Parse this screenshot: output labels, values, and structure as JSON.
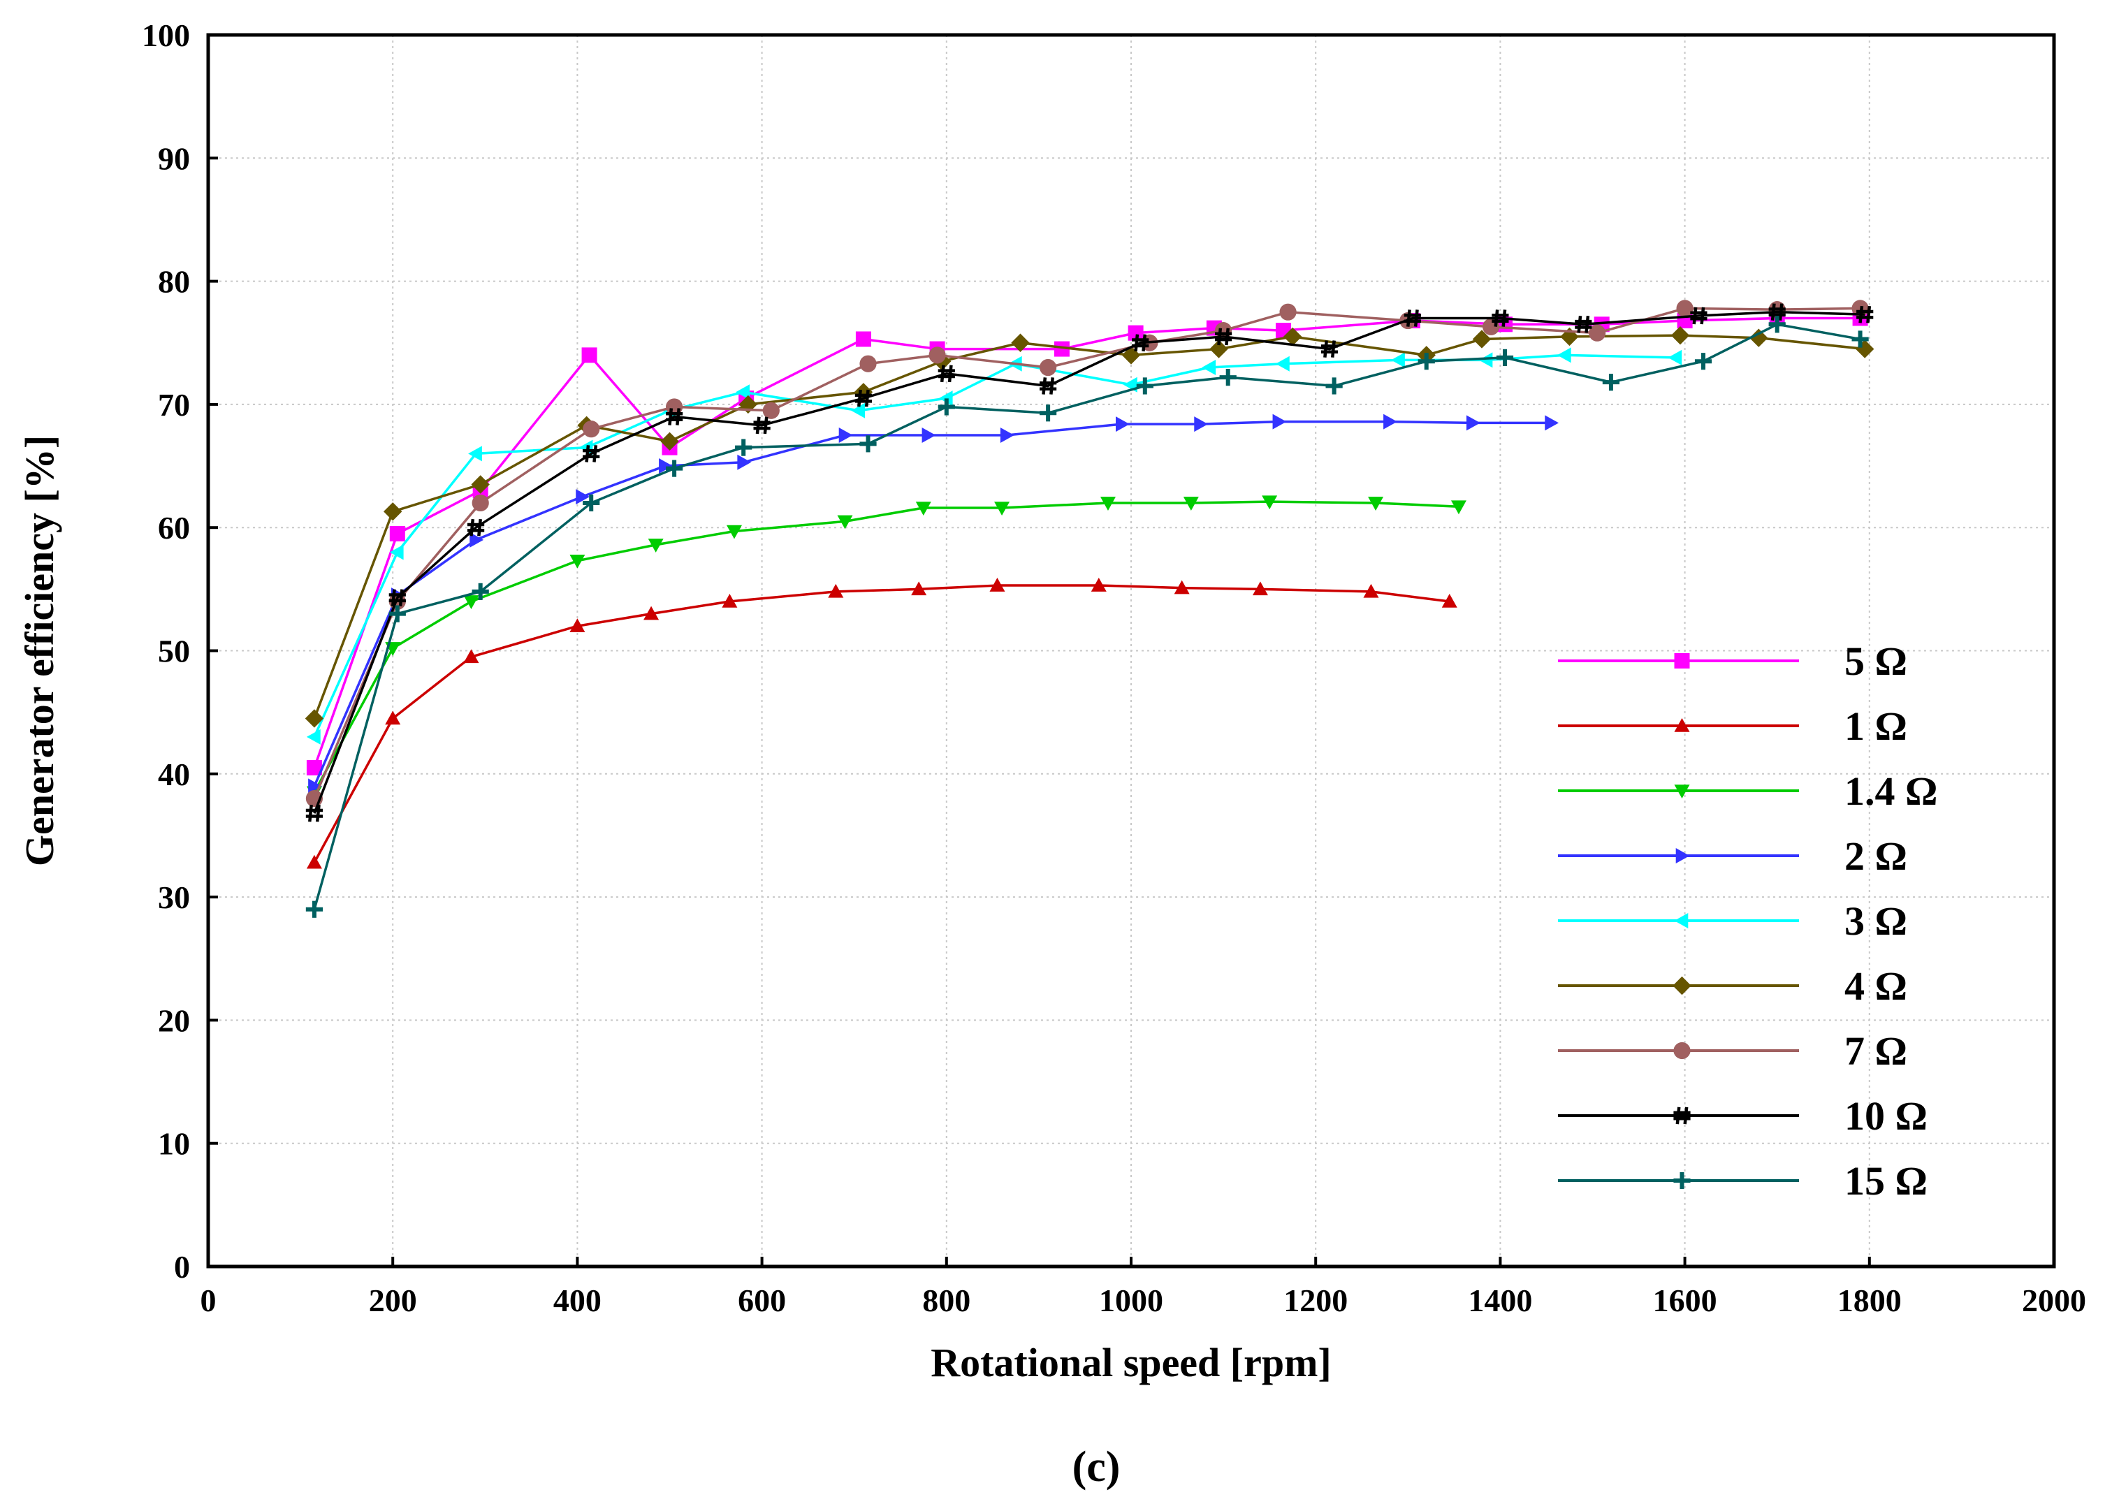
{
  "caption": "(c)",
  "chart_data": {
    "type": "line",
    "title": "",
    "xlabel": "Rotational speed [rpm]",
    "ylabel": "Generator efficiency  [%]",
    "xlim": [
      0,
      2000
    ],
    "ylim": [
      0,
      100
    ],
    "xticks": [
      0,
      200,
      400,
      600,
      800,
      1000,
      1200,
      1400,
      1600,
      1800,
      2000
    ],
    "yticks": [
      0,
      10,
      20,
      30,
      40,
      50,
      60,
      70,
      80,
      90,
      100
    ],
    "xtick_labels": [
      "0",
      "200",
      "400",
      "600",
      "800",
      "1000",
      "1200",
      "1400",
      "1600",
      "1800",
      "2000"
    ],
    "ytick_labels": [
      "0",
      "10",
      "20",
      "30",
      "40",
      "50",
      "60",
      "70",
      "80",
      "90",
      "100"
    ],
    "grid": true,
    "legend_position": "right",
    "series": [
      {
        "name": "5 Ω",
        "color": "#ff00ff",
        "marker": "square",
        "x": [
          115,
          205,
          295,
          413,
          500,
          583,
          710,
          790,
          925,
          1005,
          1090,
          1165,
          1305,
          1405,
          1510,
          1600,
          1700,
          1790
        ],
        "y": [
          40.5,
          59.5,
          63,
          74,
          66.5,
          70.5,
          75.3,
          74.5,
          74.5,
          75.8,
          76.2,
          76,
          76.8,
          76.5,
          76.5,
          76.8,
          77,
          77
        ]
      },
      {
        "name": "1 Ω",
        "color": "#cc0000",
        "marker": "triangle-up",
        "x": [
          115,
          200,
          285,
          400,
          480,
          565,
          680,
          770,
          855,
          965,
          1055,
          1140,
          1260,
          1345
        ],
        "y": [
          32.8,
          44.5,
          49.5,
          52,
          53,
          54,
          54.8,
          55,
          55.3,
          55.3,
          55.1,
          55,
          54.8,
          54
        ]
      },
      {
        "name": "1.4 Ω",
        "color": "#00cc00",
        "marker": "triangle-down",
        "x": [
          115,
          200,
          285,
          400,
          485,
          570,
          690,
          775,
          860,
          975,
          1065,
          1150,
          1265,
          1355
        ],
        "y": [
          38.5,
          50.2,
          54,
          57.3,
          58.6,
          59.7,
          60.5,
          61.6,
          61.6,
          62,
          62,
          62.1,
          62,
          61.7
        ]
      },
      {
        "name": "2 Ω",
        "color": "#3333ff",
        "marker": "triangle-right",
        "x": [
          115,
          205,
          290,
          405,
          495,
          580,
          690,
          780,
          865,
          990,
          1075,
          1160,
          1280,
          1370,
          1455
        ],
        "y": [
          39,
          54.5,
          59,
          62.5,
          65,
          65.3,
          67.5,
          67.5,
          67.5,
          68.4,
          68.4,
          68.6,
          68.6,
          68.5,
          68.5
        ]
      },
      {
        "name": "3 Ω",
        "color": "#00ffff",
        "marker": "triangle-left",
        "x": [
          115,
          205,
          290,
          410,
          500,
          580,
          705,
          800,
          875,
          1000,
          1085,
          1165,
          1290,
          1385,
          1470,
          1590
        ],
        "y": [
          43,
          58,
          66,
          66.5,
          69.5,
          71,
          69.5,
          70.5,
          73.3,
          71.6,
          73,
          73.3,
          73.6,
          73.6,
          74,
          73.8
        ]
      },
      {
        "name": "4 Ω",
        "color": "#665500",
        "marker": "diamond",
        "x": [
          115,
          200,
          295,
          410,
          500,
          585,
          710,
          795,
          880,
          1000,
          1095,
          1175,
          1320,
          1380,
          1475,
          1595,
          1680,
          1795
        ],
        "y": [
          44.5,
          61.3,
          63.5,
          68.3,
          67,
          70,
          71,
          73.5,
          75,
          74,
          74.5,
          75.5,
          74,
          75.3,
          75.5,
          75.6,
          75.4,
          74.5
        ]
      },
      {
        "name": "7 Ω",
        "color": "#a06060",
        "marker": "circle",
        "x": [
          115,
          205,
          295,
          415,
          505,
          610,
          715,
          790,
          910,
          1020,
          1100,
          1170,
          1300,
          1390,
          1505,
          1600,
          1700,
          1790
        ],
        "y": [
          38,
          54,
          62,
          68,
          69.8,
          69.5,
          73.3,
          74,
          73,
          75,
          76,
          77.5,
          76.8,
          76.3,
          75.8,
          77.8,
          77.7,
          77.8
        ]
      },
      {
        "name": "10 Ω",
        "color": "#000000",
        "marker": "hash",
        "x": [
          115,
          205,
          290,
          415,
          505,
          600,
          710,
          800,
          910,
          1010,
          1100,
          1215,
          1305,
          1400,
          1490,
          1615,
          1700,
          1795
        ],
        "y": [
          36.8,
          54.3,
          60,
          66,
          69,
          68.3,
          70.5,
          72.5,
          71.5,
          75,
          75.5,
          74.5,
          77,
          77,
          76.5,
          77.2,
          77.5,
          77.3
        ]
      },
      {
        "name": "15 Ω",
        "color": "#006060",
        "marker": "plus",
        "x": [
          115,
          205,
          295,
          415,
          505,
          580,
          715,
          800,
          910,
          1015,
          1105,
          1220,
          1320,
          1405,
          1520,
          1620,
          1700,
          1790
        ],
        "y": [
          29,
          53,
          54.8,
          62,
          64.8,
          66.5,
          66.8,
          69.8,
          69.3,
          71.5,
          72.2,
          71.5,
          73.5,
          73.8,
          71.8,
          73.5,
          76.5,
          75.3
        ]
      }
    ]
  }
}
